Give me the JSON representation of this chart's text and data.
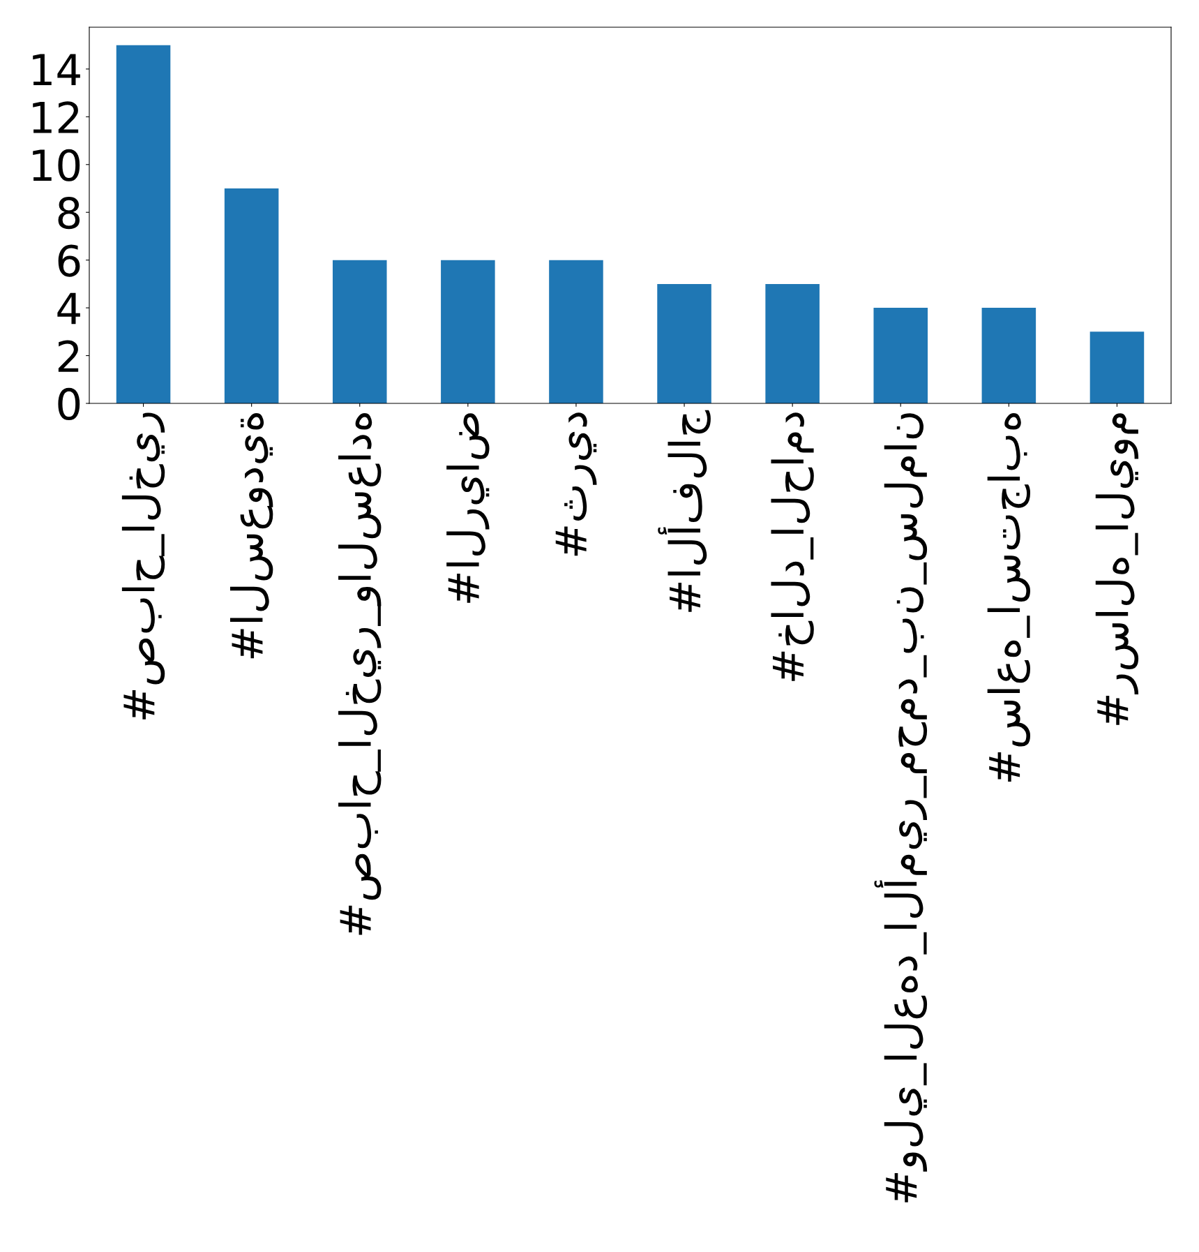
{
  "chart_data": {
    "type": "bar",
    "categories": [
      "#صباح_الخير",
      "#السعودية",
      "#صباح_الخير_والسعاده",
      "#الرياض",
      "#ثريد",
      "#الأفلاج",
      "#خالد_الحامد",
      "#ولي_العهد_الأمير_محمد_بن_سلمان",
      "#ساعه_استجابه",
      "#رساله_اليوم"
    ],
    "values": [
      15,
      9,
      6,
      6,
      6,
      5,
      5,
      4,
      4,
      3
    ],
    "color": "#1f77b4",
    "ylim": [
      0,
      15.75
    ],
    "yticks": [
      0,
      2,
      4,
      6,
      8,
      10,
      12,
      14
    ],
    "grid": false,
    "legend": false
  }
}
